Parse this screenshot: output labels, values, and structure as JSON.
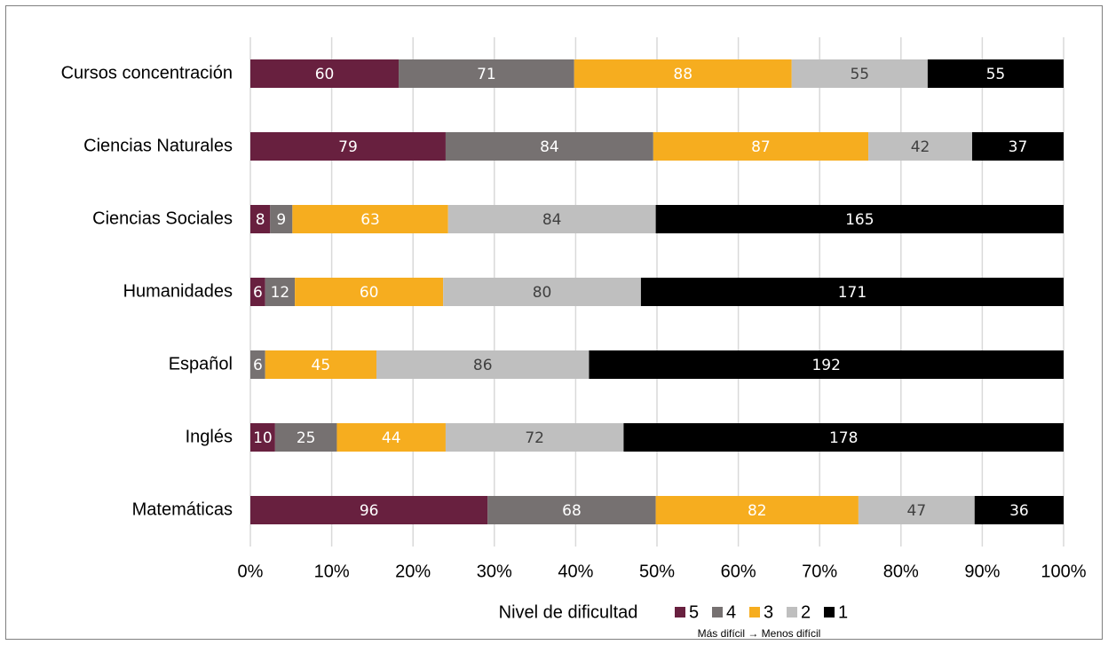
{
  "chart_data": {
    "type": "stacked-bar-100",
    "categories": [
      "Cursos concentración",
      "Ciencias Naturales",
      "Ciencias Sociales",
      "Humanidades",
      "Español",
      "Inglés",
      "Matemáticas"
    ],
    "series": [
      {
        "name": "5",
        "color": "#68203f",
        "label_color": "#ffffff",
        "values": [
          60,
          79,
          8,
          6,
          0,
          10,
          96
        ]
      },
      {
        "name": "4",
        "color": "#767171",
        "label_color": "#ffffff",
        "values": [
          71,
          84,
          9,
          12,
          6,
          25,
          68
        ]
      },
      {
        "name": "3",
        "color": "#f6ad1f",
        "label_color": "#ffffff",
        "values": [
          88,
          87,
          63,
          60,
          45,
          44,
          82
        ]
      },
      {
        "name": "2",
        "color": "#bfbfbf",
        "label_color": "#404040",
        "values": [
          55,
          42,
          84,
          80,
          86,
          72,
          47
        ]
      },
      {
        "name": "1",
        "color": "#000000",
        "label_color": "#ffffff",
        "values": [
          55,
          37,
          165,
          171,
          192,
          178,
          36
        ]
      }
    ],
    "xlim": [
      0,
      100
    ],
    "xticks": [
      {
        "value": 0,
        "label": "0%"
      },
      {
        "value": 10,
        "label": "10%"
      },
      {
        "value": 20,
        "label": "20%"
      },
      {
        "value": 30,
        "label": "30%"
      },
      {
        "value": 40,
        "label": "40%"
      },
      {
        "value": 50,
        "label": "50%"
      },
      {
        "value": 60,
        "label": "60%"
      },
      {
        "value": 70,
        "label": "70%"
      },
      {
        "value": 80,
        "label": "80%"
      },
      {
        "value": 90,
        "label": "90%"
      },
      {
        "value": 100,
        "label": "100%"
      }
    ],
    "grid": true,
    "legend_title": "Nivel de dificultad",
    "legend_position": "bottom",
    "note": "Más difícil → Menos difícil"
  }
}
